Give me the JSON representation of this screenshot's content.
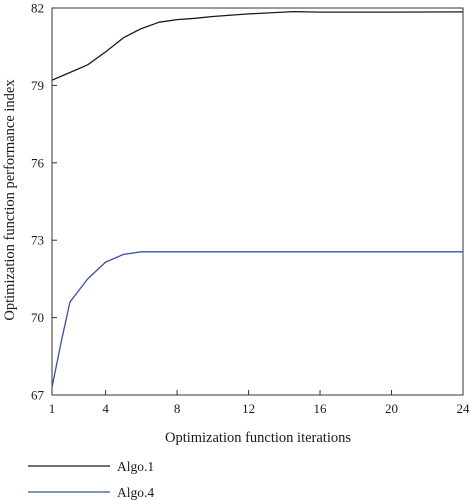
{
  "chart_data": {
    "type": "line",
    "xlabel": "Optimization function iterations",
    "ylabel": "Optimization function performance index",
    "xlim": [
      1,
      24
    ],
    "ylim": [
      67,
      82
    ],
    "xticks": [
      1,
      4,
      8,
      12,
      16,
      20,
      24
    ],
    "yticks": [
      67,
      70,
      73,
      76,
      79,
      82
    ],
    "grid": false,
    "legend_position": "bottom-left, below plot",
    "series": [
      {
        "name": "Algo.1",
        "color": "#1a1a1a",
        "x": [
          1,
          1.5,
          2,
          3,
          4,
          5,
          6,
          7,
          8,
          9,
          10,
          12,
          14,
          14.5,
          16,
          20,
          24
        ],
        "y": [
          79.2,
          79.35,
          79.5,
          79.8,
          80.3,
          80.85,
          81.2,
          81.45,
          81.55,
          81.6,
          81.67,
          81.77,
          81.84,
          81.86,
          81.84,
          81.84,
          81.85
        ]
      },
      {
        "name": "Algo.4",
        "color": "#3a4fa0",
        "x": [
          1,
          1.5,
          2,
          3,
          4,
          5,
          6,
          8,
          12,
          16,
          20,
          24
        ],
        "y": [
          67.3,
          69.0,
          70.6,
          71.5,
          72.15,
          72.45,
          72.55,
          72.55,
          72.55,
          72.55,
          72.55,
          72.55
        ]
      }
    ]
  }
}
